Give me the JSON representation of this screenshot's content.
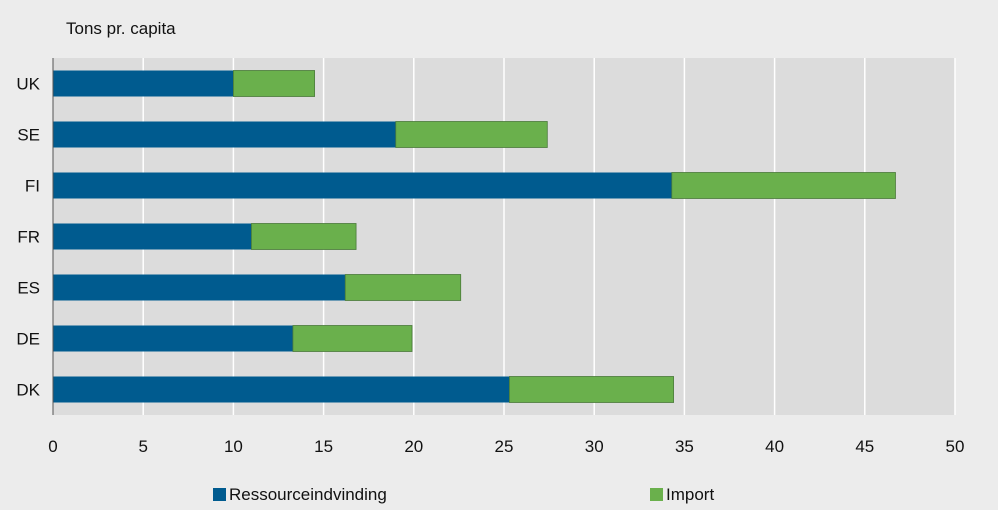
{
  "chart_data": {
    "type": "bar",
    "orientation": "horizontal",
    "stacked": true,
    "title": "Tons pr. capita",
    "categories": [
      "UK",
      "SE",
      "FI",
      "FR",
      "ES",
      "DE",
      "DK"
    ],
    "series": [
      {
        "name": "Ressourceindvinding",
        "color": "#005b8f",
        "values": [
          10.0,
          19.0,
          34.3,
          11.0,
          16.2,
          13.3,
          25.3
        ]
      },
      {
        "name": "Import",
        "color": "#6ab04c",
        "values": [
          4.5,
          8.4,
          12.4,
          5.8,
          6.4,
          6.6,
          9.1
        ]
      }
    ],
    "xlim": [
      0,
      50
    ],
    "xticks": [
      "0",
      "5",
      "10",
      "15",
      "20",
      "25",
      "30",
      "35",
      "40",
      "45",
      "50"
    ],
    "grid": true,
    "legend_position": "bottom",
    "plot_background": "#dcdcdc",
    "gridline_color": "#ffffff"
  }
}
